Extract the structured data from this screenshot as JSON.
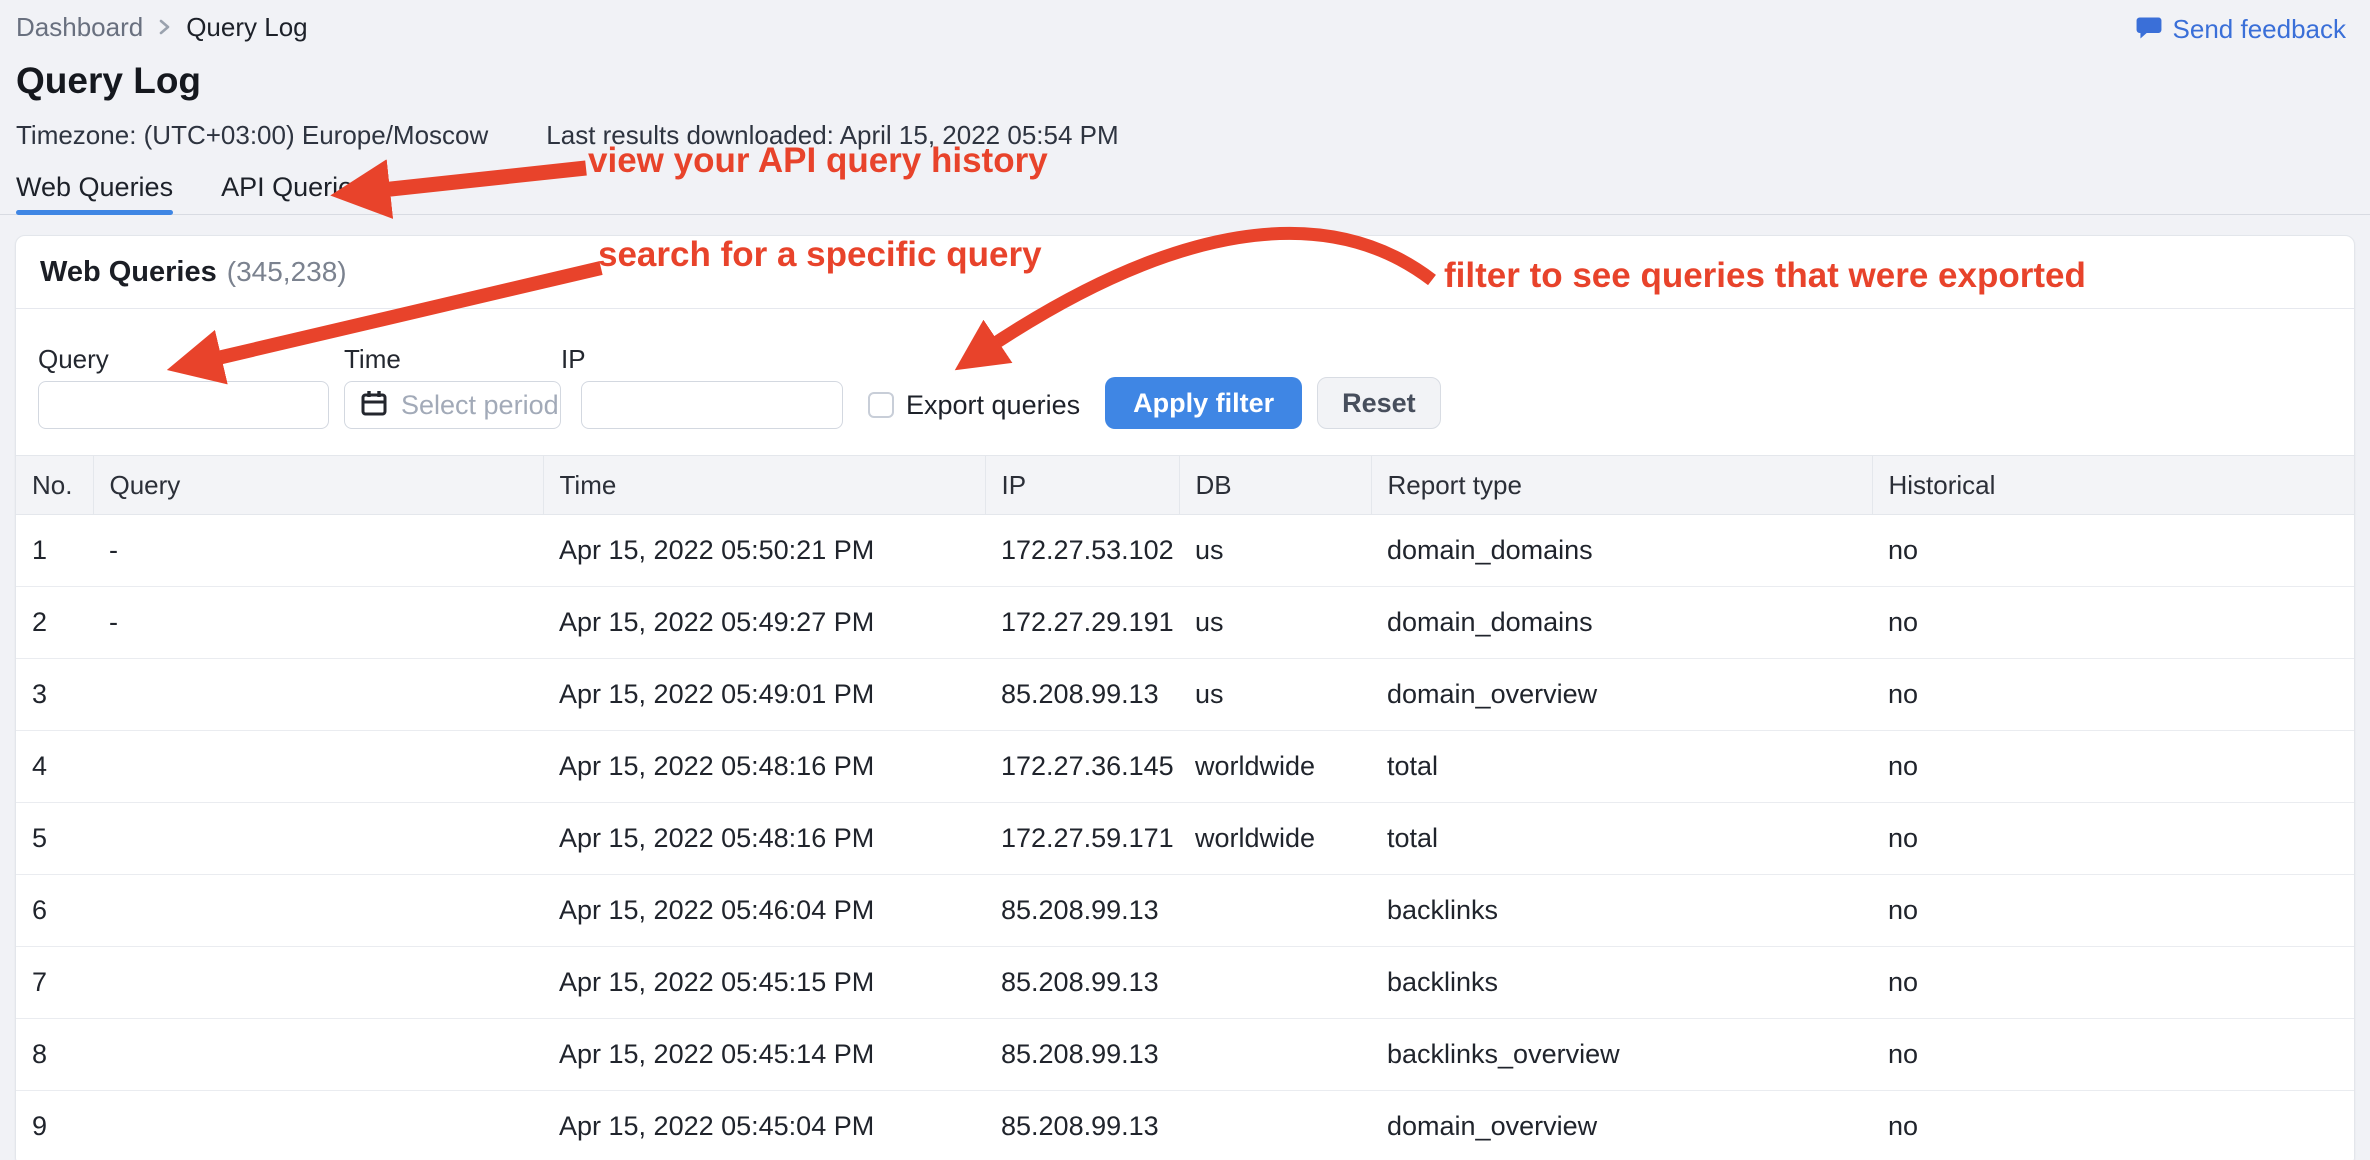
{
  "header": {
    "breadcrumb": {
      "items": [
        "Dashboard",
        "Query Log"
      ],
      "separator_icon": "chevron-right-icon"
    },
    "feedback": {
      "label": "Send feedback",
      "icon": "chat-bubble-icon"
    },
    "title": "Query Log",
    "meta": {
      "timezone": "Timezone: (UTC+03:00) Europe/Moscow",
      "last_results": "Last results downloaded: April 15, 2022 05:54 PM"
    },
    "tabs": [
      {
        "label": "Web Queries",
        "active": true
      },
      {
        "label": "API Queries",
        "active": false
      }
    ]
  },
  "annotations": {
    "tab_note": "view your API query history",
    "search_note": "search for a specific query",
    "filter_note": "filter to see queries that were exported",
    "color": "#e8432b"
  },
  "panel": {
    "title": "Web Queries",
    "count": "(345,238)",
    "filters": {
      "query_label": "Query",
      "query_value": "",
      "time_label": "Time",
      "time_placeholder": "Select period",
      "time_icon": "calendar-icon",
      "ip_label": "IP",
      "ip_value": "",
      "export_label": "Export queries",
      "export_checked": false,
      "apply_label": "Apply filter",
      "reset_label": "Reset"
    },
    "table": {
      "columns": [
        "No.",
        "Query",
        "Time",
        "IP",
        "DB",
        "Report type",
        "Historical"
      ],
      "rows": [
        [
          "1",
          "-",
          "Apr 15, 2022 05:50:21 PM",
          "172.27.53.102",
          "us",
          "domain_domains",
          "no"
        ],
        [
          "2",
          "-",
          "Apr 15, 2022 05:49:27 PM",
          "172.27.29.191",
          "us",
          "domain_domains",
          "no"
        ],
        [
          "3",
          "",
          "Apr 15, 2022 05:49:01 PM",
          "85.208.99.13",
          "us",
          "domain_overview",
          "no"
        ],
        [
          "4",
          "",
          "Apr 15, 2022 05:48:16 PM",
          "172.27.36.145",
          "worldwide",
          "total",
          "no"
        ],
        [
          "5",
          "",
          "Apr 15, 2022 05:48:16 PM",
          "172.27.59.171",
          "worldwide",
          "total",
          "no"
        ],
        [
          "6",
          "",
          "Apr 15, 2022 05:46:04 PM",
          "85.208.99.13",
          "",
          "backlinks",
          "no"
        ],
        [
          "7",
          "",
          "Apr 15, 2022 05:45:15 PM",
          "85.208.99.13",
          "",
          "backlinks",
          "no"
        ],
        [
          "8",
          "",
          "Apr 15, 2022 05:45:14 PM",
          "85.208.99.13",
          "",
          "backlinks_overview",
          "no"
        ],
        [
          "9",
          "",
          "Apr 15, 2022 05:45:04 PM",
          "85.208.99.13",
          "",
          "domain_overview",
          "no"
        ]
      ]
    }
  },
  "colors": {
    "accent_blue": "#3f86e4",
    "link_blue": "#3a6fd8",
    "annotation_red": "#e8432b",
    "page_background": "#f1f2f6"
  }
}
